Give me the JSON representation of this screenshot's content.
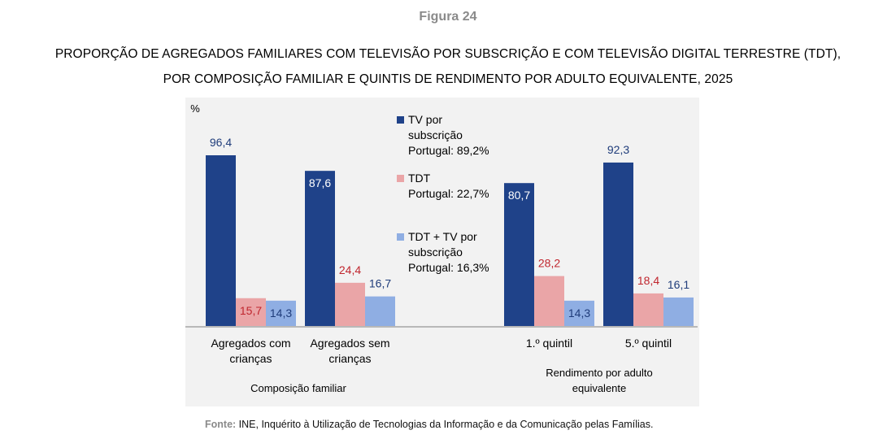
{
  "figure_label": "Figura 24",
  "title_line1": "PROPORÇÃO DE AGREGADOS FAMILIARES COM TELEVISÃO POR SUBSCRIÇÃO E COM TELEVISÃO DIGITAL TERRESTRE (TDT),",
  "title_line2": "POR COMPOSIÇÃO FAMILIAR E QUINTIS DE RENDIMENTO POR ADULTO EQUIVALENTE, 2025",
  "source": {
    "label": "Fonte:",
    "text": " INE, Inquérito à Utilização de Tecnologias da Informação e da Comunicação pelas Famílias."
  },
  "chart_data": {
    "type": "bar",
    "ylabel": "%",
    "ylim": [
      0,
      100
    ],
    "categories": [
      [
        "Agregados com",
        "crianças"
      ],
      [
        "Agregados sem",
        "crianças"
      ],
      [
        "1.º quintil"
      ],
      [
        "5.º quintil"
      ]
    ],
    "groups": [
      {
        "label": [
          "Composição familiar"
        ],
        "categories": [
          0,
          1
        ]
      },
      {
        "label": [
          "Rendimento por adulto",
          "equivalente"
        ],
        "categories": [
          2,
          3
        ]
      }
    ],
    "series": [
      {
        "name": "TV por subscrição",
        "legend_lines": [
          "TV por",
          "subscrição",
          "Portugal: 89,2%"
        ],
        "color": "#1f4289",
        "values": [
          96.4,
          87.6,
          80.7,
          92.3
        ],
        "labels": [
          "96,4",
          "87,6",
          "80,7",
          "92,3"
        ]
      },
      {
        "name": "TDT",
        "legend_lines": [
          "TDT",
          "Portugal: 22,7%"
        ],
        "color": "#eaa5a7",
        "values": [
          15.7,
          24.4,
          28.2,
          18.4
        ],
        "labels": [
          "15,7",
          "24,4",
          "28,2",
          "18,4"
        ]
      },
      {
        "name": "TDT + TV por subscrição",
        "legend_lines": [
          "TDT + TV por",
          "subscrição",
          "Portugal: 16,3%"
        ],
        "color": "#8faee3",
        "values": [
          14.3,
          16.7,
          14.3,
          16.1
        ],
        "labels": [
          "14,3",
          "16,7",
          "14,3",
          "16,1"
        ]
      }
    ],
    "label_colors": [
      "#1f3c7a",
      "#c0262e",
      "#1f3c7a"
    ],
    "legend_position": "center",
    "grid": false
  }
}
